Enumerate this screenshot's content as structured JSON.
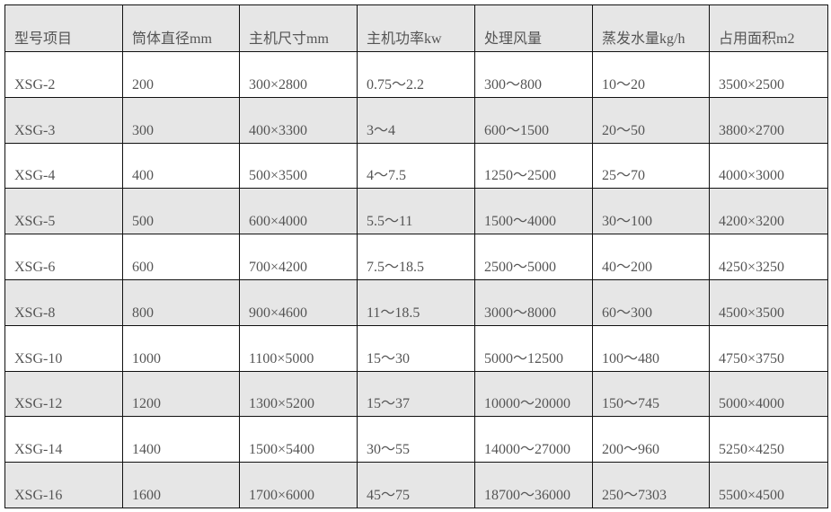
{
  "table": {
    "headers": [
      "型号项目",
      "筒体直径mm",
      "主机尺寸mm",
      "主机功率kw",
      "处理风量",
      "蒸发水量kg/h",
      "占用面积m2"
    ],
    "rows": [
      [
        "XSG-2",
        "200",
        "300×2800",
        "0.75～2.2",
        "300～800",
        "10～20",
        "3500×2500"
      ],
      [
        "XSG-3",
        "300",
        "400×3300",
        "3～4",
        "600～1500",
        "20～50",
        "3800×2700"
      ],
      [
        "XSG-4",
        "400",
        "500×3500",
        "4～7.5",
        "1250～2500",
        "25～70",
        "4000×3000"
      ],
      [
        "XSG-5",
        "500",
        "600×4000",
        "5.5～11",
        "1500～4000",
        "30～100",
        "4200×3200"
      ],
      [
        "XSG-6",
        "600",
        "700×4200",
        "7.5～18.5",
        "2500～5000",
        "40～200",
        "4250×3250"
      ],
      [
        "XSG-8",
        "800",
        "900×4600",
        "11～18.5",
        "3000～8000",
        "60～300",
        "4500×3500"
      ],
      [
        "XSG-10",
        "1000",
        "1100×5000",
        "15～30",
        "5000～12500",
        "100～480",
        "4750×3750"
      ],
      [
        "XSG-12",
        "1200",
        "1300×5200",
        "15～37",
        "10000～20000",
        "150～745",
        "5000×4000"
      ],
      [
        "XSG-14",
        "1400",
        "1500×5400",
        "30～55",
        "14000～27000",
        "200～960",
        "5250×4250"
      ],
      [
        "XSG-16",
        "1600",
        "1700×6000",
        "45～75",
        "18700～36000",
        "250～7303",
        "5500×4500"
      ]
    ],
    "colors": {
      "header_bg": "#e6e6e6",
      "stripe_bg": "#e6e6e6",
      "text": "#555555",
      "border": "#111111"
    }
  }
}
